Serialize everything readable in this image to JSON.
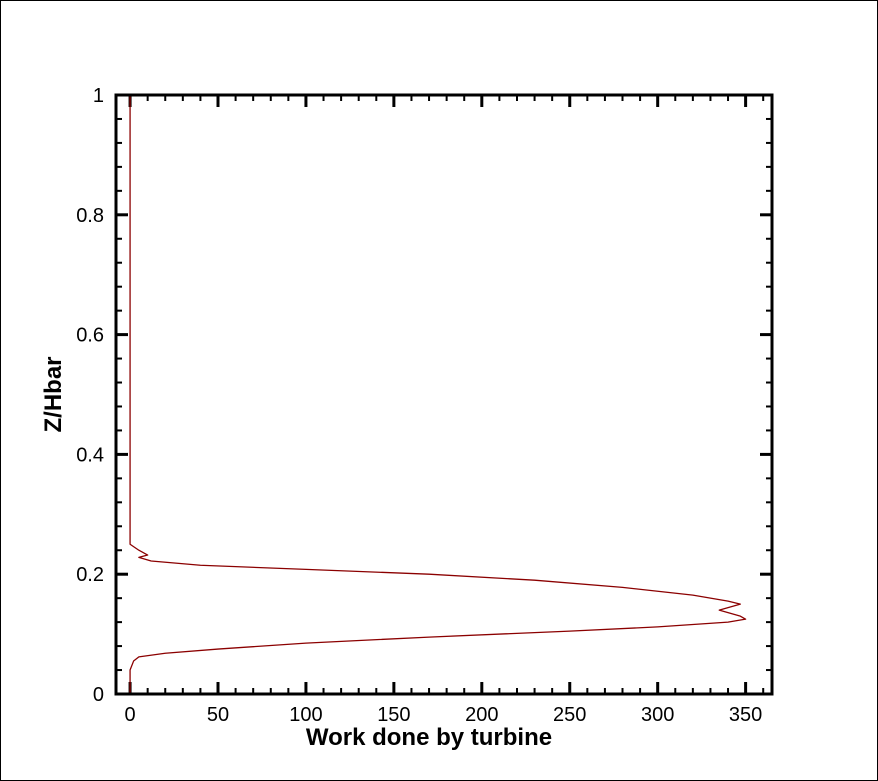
{
  "chart_data": {
    "type": "line",
    "title": "",
    "xlabel": "Work done by turbine",
    "ylabel": "Z/Hbar",
    "xlim": [
      -8,
      365
    ],
    "ylim": [
      0,
      1
    ],
    "xticks": [
      0,
      50,
      100,
      150,
      200,
      250,
      300,
      350
    ],
    "xtick_labels": [
      "0",
      "50",
      "100",
      "150",
      "200",
      "250",
      "300",
      "350"
    ],
    "yticks": [
      0,
      0.2,
      0.4,
      0.6,
      0.8,
      1
    ],
    "ytick_labels": [
      "0",
      "0.2",
      "0.4",
      "0.6",
      "0.8",
      "1"
    ],
    "grid": false,
    "legend": "none",
    "line_color": "#8b0000",
    "series": [
      {
        "name": "",
        "points": [
          [
            0,
            1.0
          ],
          [
            0,
            0.25
          ],
          [
            5,
            0.24
          ],
          [
            10,
            0.232
          ],
          [
            5,
            0.228
          ],
          [
            12,
            0.222
          ],
          [
            40,
            0.215
          ],
          [
            100,
            0.208
          ],
          [
            170,
            0.2
          ],
          [
            230,
            0.19
          ],
          [
            280,
            0.178
          ],
          [
            320,
            0.165
          ],
          [
            340,
            0.155
          ],
          [
            347,
            0.15
          ],
          [
            335,
            0.14
          ],
          [
            347,
            0.13
          ],
          [
            350,
            0.125
          ],
          [
            340,
            0.12
          ],
          [
            300,
            0.112
          ],
          [
            250,
            0.105
          ],
          [
            170,
            0.095
          ],
          [
            100,
            0.085
          ],
          [
            50,
            0.075
          ],
          [
            20,
            0.068
          ],
          [
            5,
            0.062
          ],
          [
            2,
            0.055
          ],
          [
            0,
            0.04
          ],
          [
            0,
            0.0
          ]
        ]
      }
    ]
  }
}
